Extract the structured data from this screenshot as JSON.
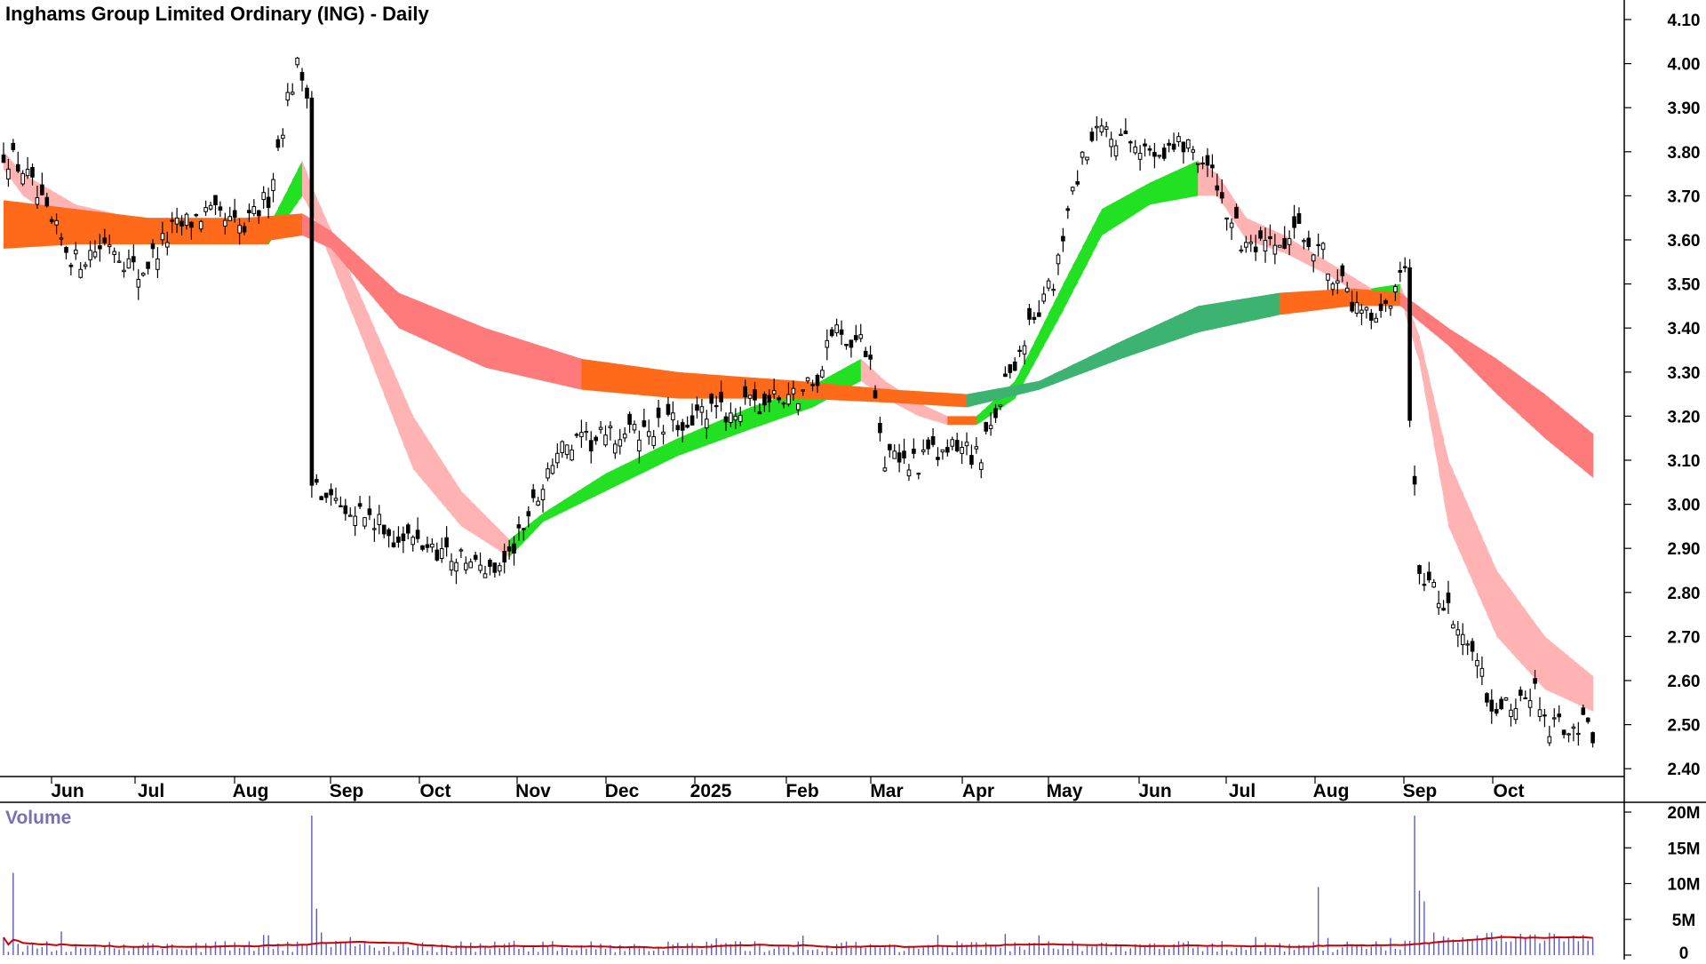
{
  "chart_data": {
    "type": "candlestick",
    "title": "Inghams Group Limited Ordinary (ING) - Daily",
    "price_axis": {
      "ticks": [
        "4.10",
        "4.00",
        "3.90",
        "3.80",
        "3.70",
        "3.60",
        "3.50",
        "3.40",
        "3.30",
        "3.20",
        "3.10",
        "3.00",
        "2.90",
        "2.80",
        "2.70",
        "2.60",
        "2.50",
        "2.40"
      ],
      "range": [
        2.37,
        4.14
      ]
    },
    "month_labels": [
      "Jun",
      "Jul",
      "Aug",
      "Sep",
      "Oct",
      "Nov",
      "Dec",
      "2025",
      "Feb",
      "Mar",
      "Apr",
      "May",
      "Jun",
      "Jul",
      "Aug",
      "Sep",
      "Oct"
    ],
    "price_anchors": [
      [
        0,
        3.8
      ],
      [
        4,
        3.76
      ],
      [
        10,
        3.63
      ],
      [
        15,
        3.55
      ],
      [
        22,
        3.6
      ],
      [
        28,
        3.52
      ],
      [
        35,
        3.62
      ],
      [
        42,
        3.66
      ],
      [
        50,
        3.62
      ],
      [
        55,
        3.7
      ],
      [
        59,
        3.92
      ],
      [
        61,
        3.99
      ],
      [
        63,
        3.95
      ],
      [
        64,
        3.05
      ],
      [
        72,
        3.0
      ],
      [
        80,
        2.93
      ],
      [
        90,
        2.9
      ],
      [
        100,
        2.85
      ],
      [
        105,
        2.88
      ],
      [
        110,
        3.0
      ],
      [
        115,
        3.12
      ],
      [
        125,
        3.15
      ],
      [
        135,
        3.17
      ],
      [
        145,
        3.2
      ],
      [
        155,
        3.22
      ],
      [
        165,
        3.25
      ],
      [
        170,
        3.3
      ],
      [
        172,
        3.4
      ],
      [
        180,
        3.35
      ],
      [
        183,
        3.1
      ],
      [
        190,
        3.1
      ],
      [
        200,
        3.13
      ],
      [
        203,
        3.1
      ],
      [
        207,
        3.25
      ],
      [
        213,
        3.4
      ],
      [
        218,
        3.5
      ],
      [
        223,
        3.75
      ],
      [
        228,
        3.85
      ],
      [
        235,
        3.8
      ],
      [
        245,
        3.82
      ],
      [
        248,
        3.8
      ],
      [
        252,
        3.72
      ],
      [
        258,
        3.57
      ],
      [
        265,
        3.58
      ],
      [
        270,
        3.62
      ],
      [
        275,
        3.55
      ],
      [
        280,
        3.45
      ],
      [
        285,
        3.4
      ],
      [
        288,
        3.45
      ],
      [
        291,
        3.52
      ],
      [
        292,
        3.2
      ],
      [
        294,
        2.85
      ],
      [
        300,
        2.75
      ],
      [
        305,
        2.66
      ],
      [
        307,
        2.64
      ],
      [
        308,
        2.56
      ],
      [
        315,
        2.54
      ],
      [
        318,
        2.57
      ],
      [
        321,
        2.5
      ],
      [
        327,
        2.5
      ],
      [
        330,
        2.48
      ]
    ],
    "vol_spikes": [
      [
        2,
        11.5
      ],
      [
        64,
        19.5
      ],
      [
        65,
        6.5
      ],
      [
        273,
        9.5
      ],
      [
        293,
        19.5
      ],
      [
        294,
        9.0
      ],
      [
        295,
        7.5
      ]
    ],
    "bands": [
      {
        "name": "",
        "anchors": [
          [
            0,
            3.8,
            3.76
          ],
          [
            4,
            3.75,
            3.7
          ],
          [
            15,
            3.68,
            3.62
          ],
          [
            35,
            3.63,
            3.59
          ],
          [
            55,
            3.63,
            3.59
          ],
          [
            62,
            3.78,
            3.7
          ],
          [
            64,
            3.72,
            3.66
          ],
          [
            75,
            3.45,
            3.36
          ],
          [
            85,
            3.2,
            3.08
          ],
          [
            95,
            3.03,
            2.95
          ],
          [
            105,
            2.92,
            2.88
          ],
          [
            112,
            2.98,
            2.96
          ],
          [
            125,
            3.07,
            3.03
          ],
          [
            140,
            3.15,
            3.11
          ],
          [
            155,
            3.22,
            3.17
          ],
          [
            168,
            3.27,
            3.22
          ],
          [
            178,
            3.33,
            3.28
          ],
          [
            183,
            3.28,
            3.24
          ],
          [
            190,
            3.23,
            3.2
          ],
          [
            196,
            3.2,
            3.18
          ],
          [
            202,
            3.2,
            3.18
          ],
          [
            210,
            3.28,
            3.24
          ],
          [
            220,
            3.5,
            3.44
          ],
          [
            228,
            3.67,
            3.61
          ],
          [
            238,
            3.73,
            3.68
          ],
          [
            248,
            3.78,
            3.7
          ],
          [
            252,
            3.75,
            3.7
          ],
          [
            258,
            3.65,
            3.6
          ],
          [
            266,
            3.61,
            3.57
          ],
          [
            275,
            3.55,
            3.52
          ],
          [
            284,
            3.49,
            3.46
          ],
          [
            290,
            3.5,
            3.47
          ],
          [
            294,
            3.38,
            3.32
          ],
          [
            300,
            3.1,
            2.95
          ],
          [
            310,
            2.85,
            2.7
          ],
          [
            320,
            2.7,
            2.58
          ],
          [
            330,
            2.61,
            2.53
          ]
        ]
      },
      {
        "name": "",
        "anchors": [
          [
            0,
            3.69,
            3.58
          ],
          [
            15,
            3.67,
            3.59
          ],
          [
            30,
            3.65,
            3.59
          ],
          [
            50,
            3.65,
            3.59
          ],
          [
            62,
            3.66,
            3.61
          ],
          [
            68,
            3.62,
            3.58
          ],
          [
            82,
            3.48,
            3.4
          ],
          [
            100,
            3.4,
            3.31
          ],
          [
            120,
            3.33,
            3.26
          ],
          [
            140,
            3.3,
            3.24
          ],
          [
            165,
            3.28,
            3.24
          ],
          [
            185,
            3.26,
            3.23
          ],
          [
            200,
            3.25,
            3.22
          ],
          [
            215,
            3.28,
            3.26
          ],
          [
            232,
            3.37,
            3.33
          ],
          [
            248,
            3.45,
            3.39
          ],
          [
            265,
            3.48,
            3.43
          ],
          [
            280,
            3.49,
            3.45
          ],
          [
            290,
            3.48,
            3.45
          ],
          [
            300,
            3.4,
            3.36
          ],
          [
            310,
            3.33,
            3.25
          ],
          [
            320,
            3.25,
            3.15
          ],
          [
            330,
            3.16,
            3.06
          ]
        ]
      }
    ],
    "volume_axis": {
      "ticks": [
        "20M",
        "15M",
        "10M",
        "5M",
        "0"
      ],
      "max": 20
    },
    "volume_title": "Volume",
    "colors": {
      "candle": "#000000",
      "volume_bar": "#5a5ac8",
      "volume_ma": "#cc0000",
      "fast_up": "#22e022",
      "fast_down": "#ffb3b3",
      "slow_up": "#3cb371",
      "slow_down": "#ff7a7a",
      "transition": "#ff6a1a",
      "volume_title": "#7a6fb0"
    }
  }
}
